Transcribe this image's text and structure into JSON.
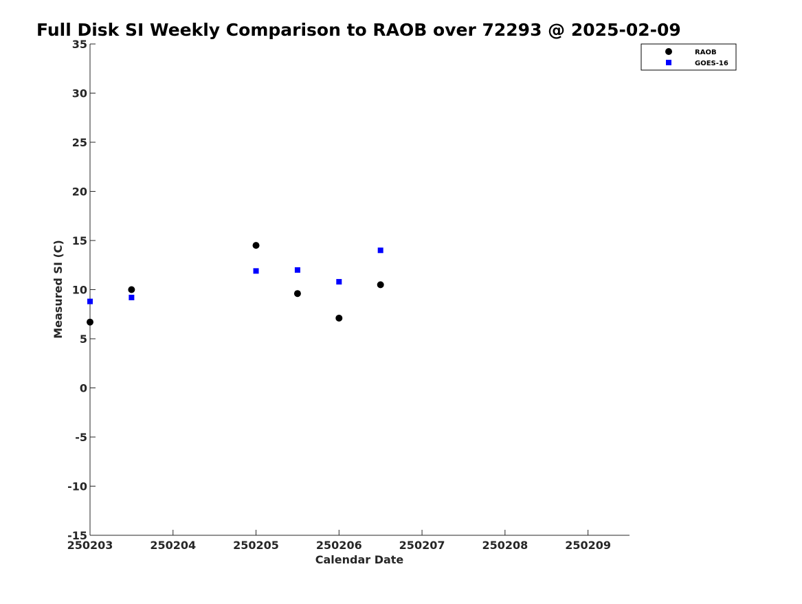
{
  "chart_data": {
    "type": "scatter",
    "title": "Full Disk SI Weekly Comparison to RAOB over 72293 @ 2025-02-09",
    "xlabel": "Calendar Date",
    "ylabel": "Measured SI (C)",
    "x_ticks": [
      "250203",
      "250204",
      "250205",
      "250206",
      "250207",
      "250208",
      "250209"
    ],
    "x_tick_values": [
      3,
      4,
      5,
      6,
      7,
      8,
      9
    ],
    "xlim": [
      3,
      9.5
    ],
    "y_ticks": [
      "35",
      "30",
      "25",
      "20",
      "15",
      "10",
      "5",
      "0",
      "-5",
      "-10",
      "-15"
    ],
    "y_tick_values": [
      35,
      30,
      25,
      20,
      15,
      10,
      5,
      0,
      -5,
      -10,
      -15
    ],
    "ylim": [
      -15,
      35
    ],
    "grid": false,
    "legend_position": "top-right",
    "series": [
      {
        "name": "RAOB",
        "marker": "circle",
        "color": "#000000",
        "x": [
          3.0,
          3.5,
          5.0,
          5.5,
          6.0,
          6.5
        ],
        "y": [
          6.7,
          10.0,
          14.5,
          9.6,
          7.1,
          10.5
        ]
      },
      {
        "name": "GOES-16",
        "marker": "square",
        "color": "#0000ff",
        "x": [
          3.0,
          3.5,
          5.0,
          5.5,
          6.0,
          6.5
        ],
        "y": [
          8.8,
          9.2,
          11.9,
          12.0,
          10.8,
          14.0
        ]
      }
    ]
  }
}
